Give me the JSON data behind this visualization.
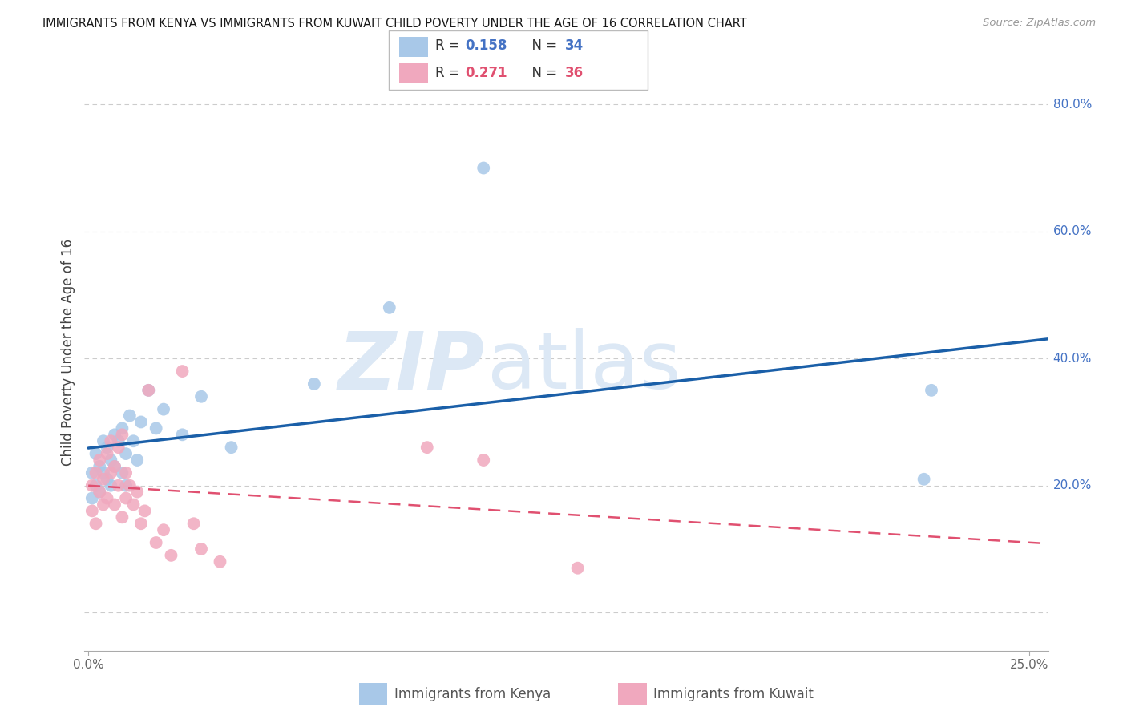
{
  "title": "IMMIGRANTS FROM KENYA VS IMMIGRANTS FROM KUWAIT CHILD POVERTY UNDER THE AGE OF 16 CORRELATION CHART",
  "source": "Source: ZipAtlas.com",
  "ylabel": "Child Poverty Under the Age of 16",
  "yaxis_labels": [
    "20.0%",
    "40.0%",
    "60.0%",
    "80.0%"
  ],
  "yaxis_values": [
    0.2,
    0.4,
    0.6,
    0.8
  ],
  "xaxis_labels": [
    "0.0%",
    "25.0%"
  ],
  "xaxis_values": [
    0.0,
    0.25
  ],
  "xlim": [
    -0.001,
    0.255
  ],
  "ylim": [
    -0.06,
    0.88
  ],
  "kenya_R": 0.158,
  "kenya_N": 34,
  "kuwait_R": 0.271,
  "kuwait_N": 36,
  "kenya_color": "#a8c8e8",
  "kenya_line_color": "#1a5fa8",
  "kuwait_color": "#f0a8be",
  "kuwait_line_color": "#e05070",
  "watermark_color": "#dce8f5",
  "title_color": "#1a1a1a",
  "source_color": "#999999",
  "grid_color": "#cccccc",
  "right_label_color": "#4472c4",
  "kenya_x": [
    0.001,
    0.001,
    0.002,
    0.002,
    0.003,
    0.003,
    0.004,
    0.004,
    0.005,
    0.005,
    0.006,
    0.006,
    0.007,
    0.007,
    0.008,
    0.009,
    0.009,
    0.01,
    0.01,
    0.011,
    0.012,
    0.013,
    0.014,
    0.016,
    0.018,
    0.02,
    0.025,
    0.03,
    0.038,
    0.06,
    0.08,
    0.105,
    0.222,
    0.224
  ],
  "kenya_y": [
    0.22,
    0.18,
    0.25,
    0.2,
    0.23,
    0.19,
    0.27,
    0.22,
    0.26,
    0.21,
    0.24,
    0.2,
    0.28,
    0.23,
    0.27,
    0.29,
    0.22,
    0.25,
    0.2,
    0.31,
    0.27,
    0.24,
    0.3,
    0.35,
    0.29,
    0.32,
    0.28,
    0.34,
    0.26,
    0.36,
    0.48,
    0.7,
    0.21,
    0.35
  ],
  "kuwait_x": [
    0.001,
    0.001,
    0.002,
    0.002,
    0.003,
    0.003,
    0.004,
    0.004,
    0.005,
    0.005,
    0.006,
    0.006,
    0.007,
    0.007,
    0.008,
    0.008,
    0.009,
    0.009,
    0.01,
    0.01,
    0.011,
    0.012,
    0.013,
    0.014,
    0.015,
    0.016,
    0.018,
    0.02,
    0.022,
    0.025,
    0.028,
    0.03,
    0.035,
    0.09,
    0.105,
    0.13
  ],
  "kuwait_y": [
    0.2,
    0.16,
    0.22,
    0.14,
    0.24,
    0.19,
    0.21,
    0.17,
    0.25,
    0.18,
    0.27,
    0.22,
    0.23,
    0.17,
    0.26,
    0.2,
    0.28,
    0.15,
    0.22,
    0.18,
    0.2,
    0.17,
    0.19,
    0.14,
    0.16,
    0.35,
    0.11,
    0.13,
    0.09,
    0.38,
    0.14,
    0.1,
    0.08,
    0.26,
    0.24,
    0.07
  ]
}
